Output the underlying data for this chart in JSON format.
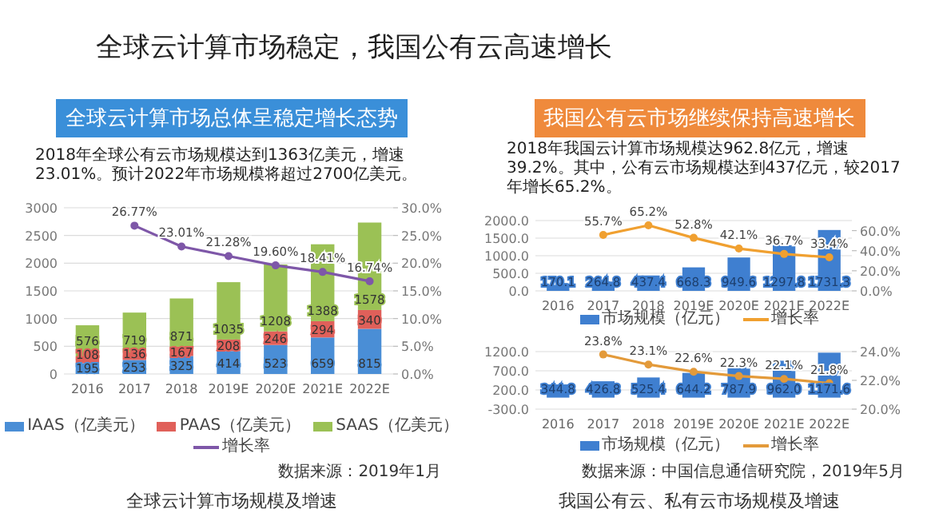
{
  "chart_data": [
    {
      "type": "other",
      "title": "全球云计算市场稳定，我国公有云高速增长"
    },
    {
      "type": "bar",
      "stacked": true,
      "title": "全球云计算市场总体呈稳定增长态势",
      "subtitle": "2018年全球公有云市场规模达到1363亿美元，增速23.01%。预计2022年市场规模将超过2700亿美元。",
      "categories": [
        "2016",
        "2017",
        "2018",
        "2019E",
        "2020E",
        "2021E",
        "2022E"
      ],
      "ylim": [
        0,
        3000
      ],
      "yticks": [
        0,
        500,
        1000,
        1500,
        2000,
        2500,
        3000
      ],
      "y2lim": [
        0,
        30
      ],
      "y2ticks": [
        {
          "value": 0,
          "label": "0.0%"
        },
        {
          "value": 5,
          "label": "5.0%"
        },
        {
          "value": 10,
          "label": "10.0%"
        },
        {
          "value": 15,
          "label": "15.0%"
        },
        {
          "value": 20,
          "label": "20.0%"
        },
        {
          "value": 25,
          "label": "25.0%"
        },
        {
          "value": 30,
          "label": "30.0%"
        }
      ],
      "grid": "y",
      "legend": "bottom",
      "annotations": [
        "数据来源：2019年1月",
        "全球云计算市场规模及增速"
      ],
      "series": [
        {
          "name": "IAAS（亿美元）",
          "color": "#4a8ed6",
          "values": [
            195,
            253,
            325,
            414,
            523,
            659,
            815
          ],
          "value_labels": [
            "195",
            "253",
            "325",
            "414",
            "523",
            "659",
            "815"
          ]
        },
        {
          "name": "PAAS（亿美元）",
          "color": "#e0605a",
          "values": [
            108,
            136,
            167,
            208,
            246,
            294,
            340
          ],
          "value_labels": [
            "108",
            "136",
            "167",
            "208",
            "246",
            "294",
            "340"
          ]
        },
        {
          "name": "SAAS（亿美元）",
          "color": "#9bc155",
          "values": [
            576,
            719,
            871,
            1035,
            1208,
            1388,
            1578
          ],
          "value_labels": [
            "576",
            "719",
            "871",
            "1035",
            "1208",
            "1388",
            "1578"
          ]
        },
        {
          "name": "增长率",
          "type": "line",
          "axis": "y2",
          "marker": "circle",
          "color": "#7e57a8",
          "values": [
            null,
            26.77,
            23.01,
            21.28,
            19.6,
            18.41,
            16.74
          ],
          "value_labels": [
            null,
            "26.77%",
            "23.01%",
            "21.28%",
            "19.60%",
            "18.41%",
            "16.74%"
          ]
        }
      ]
    },
    {
      "type": "bar",
      "title": "我国公有云市场继续保持高速增长",
      "subtitle": "2018年我国云计算市场规模达962.8亿元，增速39.2%。其中，公有云市场规模达到437亿元，较2017年增长65.2%。",
      "categories": [
        "2016",
        "2017",
        "2018",
        "2019E",
        "2020E",
        "2021E",
        "2022E"
      ],
      "ylim": [
        0,
        2000
      ],
      "yticks": [
        {
          "value": 0,
          "label": "0.0"
        },
        {
          "value": 500,
          "label": "500.0"
        },
        {
          "value": 1000,
          "label": "1000.0"
        },
        {
          "value": 1500,
          "label": "1500.0"
        },
        {
          "value": 2000,
          "label": "2000.0"
        }
      ],
      "y2lim": [
        0,
        70
      ],
      "y2ticks": [
        {
          "value": 0,
          "label": "0.0%"
        },
        {
          "value": 20,
          "label": "20.0%"
        },
        {
          "value": 40,
          "label": "40.0%"
        },
        {
          "value": 60,
          "label": "60.0%"
        }
      ],
      "grid": "y",
      "legend": "bottom",
      "series": [
        {
          "name": "市场规模（亿元）",
          "color": "#3f7fd0",
          "values": [
            170.1,
            264.8,
            437.4,
            668.3,
            949.6,
            1297.8,
            1731.3
          ],
          "value_labels": [
            "170.1",
            "264.8",
            "437.4",
            "668.3",
            "949.6",
            "1297.8",
            "1731.3"
          ]
        },
        {
          "name": "增长率",
          "type": "line",
          "axis": "y2",
          "marker": "circle",
          "color": "#f0a030",
          "values": [
            null,
            55.7,
            65.2,
            52.8,
            42.1,
            36.7,
            33.4
          ],
          "value_labels": [
            null,
            "55.7%",
            "65.2%",
            "52.8%",
            "42.1%",
            "36.7%",
            "33.4%"
          ]
        }
      ]
    },
    {
      "type": "bar",
      "categories": [
        "2016",
        "2017",
        "2018",
        "2019E",
        "2020E",
        "2021E",
        "2022E"
      ],
      "ylim": [
        -300,
        1200
      ],
      "yticks": [
        {
          "value": -300,
          "label": "-300.0"
        },
        {
          "value": 200,
          "label": "200.0"
        },
        {
          "value": 700,
          "label": "700.0"
        },
        {
          "value": 1200,
          "label": "1200.0"
        }
      ],
      "y2lim": [
        20,
        24
      ],
      "y2ticks": [
        {
          "value": 20,
          "label": "20.0%"
        },
        {
          "value": 22,
          "label": "22.0%"
        },
        {
          "value": 24,
          "label": "24.0%"
        }
      ],
      "grid": "y",
      "legend": "bottom",
      "annotations": [
        "数据来源：中国信息通信研究院，2019年5月",
        "我国公有云、私有云市场规模及增速"
      ],
      "series": [
        {
          "name": "市场规模（亿元）",
          "color": "#3f7fd0",
          "values": [
            344.8,
            426.8,
            525.4,
            644.2,
            787.9,
            962.0,
            1171.6
          ],
          "value_labels": [
            "344.8",
            "426.8",
            "525.4",
            "644.2",
            "787.9",
            "962.0",
            "1171.6"
          ]
        },
        {
          "name": "增长率",
          "type": "line",
          "axis": "y2",
          "marker": "circle",
          "color": "#e39a3a",
          "values": [
            null,
            23.8,
            23.1,
            22.6,
            22.3,
            22.1,
            21.8
          ],
          "value_labels": [
            null,
            "23.8%",
            "23.1%",
            "22.6%",
            "22.3%",
            "22.1%",
            "21.8%"
          ]
        }
      ]
    }
  ]
}
